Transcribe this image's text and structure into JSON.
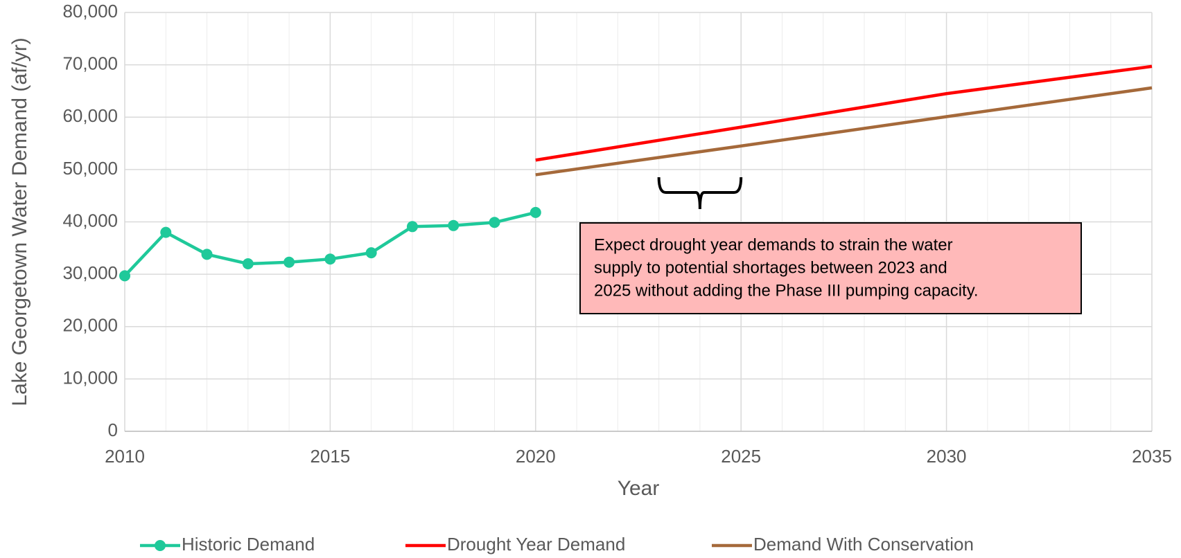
{
  "chart_data": {
    "type": "line",
    "x_label": "Year",
    "y_label": "Lake Georgetown Water Demand (af/yr)",
    "xlim": [
      2010,
      2035
    ],
    "xticks": [
      2010,
      2015,
      2020,
      2025,
      2030,
      2035
    ],
    "xminorticks": [
      2011,
      2012,
      2013,
      2014,
      2016,
      2017,
      2018,
      2019,
      2021,
      2022,
      2023,
      2024,
      2026,
      2027,
      2028,
      2029,
      2031,
      2032,
      2033,
      2034
    ],
    "ylim": [
      0,
      80000
    ],
    "yticks": [
      {
        "value": 0,
        "label": "0"
      },
      {
        "value": 10000,
        "label": "10,000"
      },
      {
        "value": 20000,
        "label": "20,000"
      },
      {
        "value": 30000,
        "label": "30,000"
      },
      {
        "value": 40000,
        "label": "40,000"
      },
      {
        "value": 50000,
        "label": "50,000"
      },
      {
        "value": 60000,
        "label": "60,000"
      },
      {
        "value": 70000,
        "label": "70,000"
      },
      {
        "value": 80000,
        "label": "80,000"
      }
    ],
    "grid": true,
    "legend": "bottom",
    "series": [
      {
        "name": "Historic Demand",
        "color": "#1fc99a",
        "markers": true,
        "x": [
          2010,
          2011,
          2012,
          2013,
          2014,
          2015,
          2016,
          2017,
          2018,
          2019,
          2020
        ],
        "values": [
          29700,
          38000,
          33800,
          32000,
          32300,
          32900,
          34100,
          39100,
          39300,
          39900,
          41800
        ]
      },
      {
        "name": "Drought Year Demand",
        "color": "#ff0000",
        "markers": false,
        "x": [
          2020,
          2025,
          2030,
          2035
        ],
        "values": [
          51800,
          58100,
          64500,
          69700
        ]
      },
      {
        "name": "Demand With Conservation",
        "color": "#a5693a",
        "markers": false,
        "x": [
          2020,
          2025,
          2030,
          2035
        ],
        "values": [
          49000,
          54500,
          60100,
          65600
        ]
      }
    ],
    "annotation": {
      "lines": [
        "Expect drought year demands to strain the water",
        "supply to potential shortages between 2023 and",
        "2025 without adding the Phase III pumping capacity."
      ],
      "bracket_x": [
        2023,
        2025
      ]
    }
  }
}
